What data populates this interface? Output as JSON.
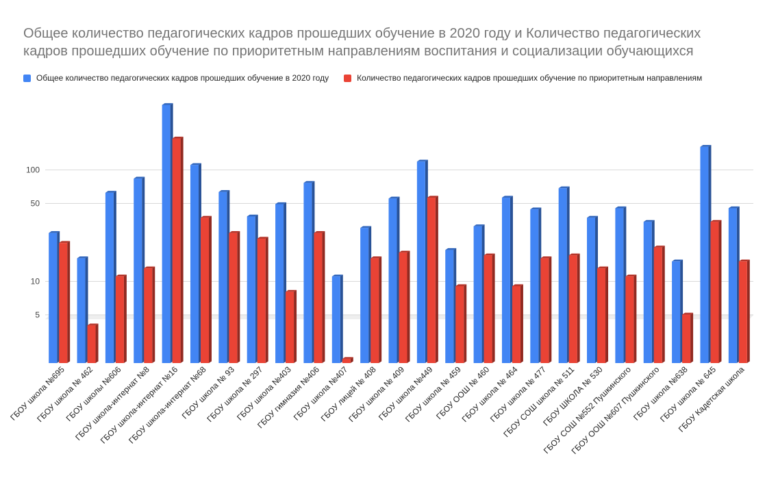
{
  "chart_data": {
    "type": "bar",
    "title_lines": [
      "Общее количество педагогических кадров прошедших обучение в 2020 году  и Количество педагогических",
      "кадров прошедших обучение по приоритетным направлениям воспитания и социализации обучающихся"
    ],
    "scale": "log",
    "y_ticks": [
      5,
      10,
      50,
      100
    ],
    "y_tick_labels": [
      "5",
      "10",
      "50",
      "100"
    ],
    "categories": [
      "ГБОУ школа №695",
      "ГБОУ школа № 462",
      "ГБОУ школы №606",
      "ГБОУ школа-интернат №8",
      "ГБОУ школа-интернат №16",
      "ГБОУ школа-интернат №68",
      "ГБОУ школа № 93",
      "ГБОУ школа № 297",
      "ГБОУ школа №403",
      "ГБОУ гимназия №406",
      "ГБОУ школа №407",
      "ГБОУ лицей № 408",
      "ГБОУ школа № 409",
      "ГБОУ школа №449",
      "ГБОУ школа № 459",
      "ГБОУ ООШ № 460",
      "ГБОУ школа № 464",
      "ГБОУ школа № 477",
      "ГБОУ СОШ школа № 511",
      "ГБОУ ШКОЛА № 530",
      "ГБОУ СОШ №552 Пушкинского",
      "ГБОУ ООШ №607 Пушкинского",
      "ГБОУ школа №638",
      "ГБОУ школа № 645",
      "ГБОУ Кадетская школа"
    ],
    "series": [
      {
        "name": "Общее количество педагогических кадров прошедших обучение в 2020 году",
        "color": "#4285f4",
        "values": [
          27,
          16,
          62,
          83,
          380,
          110,
          63,
          38,
          49,
          76,
          11,
          30,
          55,
          118,
          19,
          31,
          56,
          44,
          68,
          37,
          45,
          34,
          15,
          160,
          45
        ]
      },
      {
        "name": "Количество педагогических кадров прошедших обучение по приоритетным направлениям",
        "color": "#ea4335",
        "values": [
          22,
          4,
          11,
          13,
          190,
          37,
          27,
          24,
          8,
          27,
          2,
          16,
          18,
          56,
          9,
          17,
          9,
          16,
          17,
          13,
          11,
          20,
          5,
          34,
          15
        ]
      }
    ]
  }
}
